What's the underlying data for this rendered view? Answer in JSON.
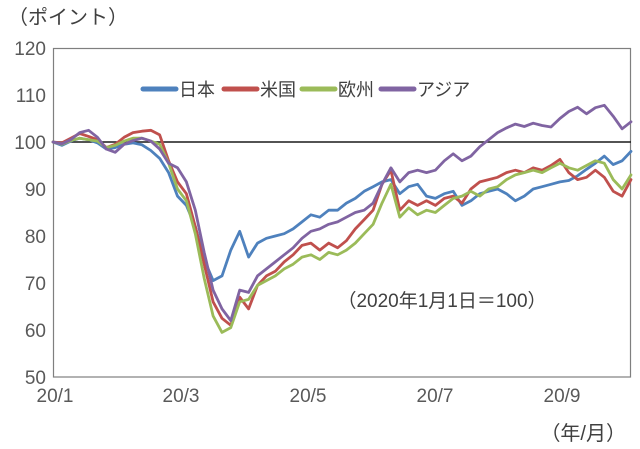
{
  "chart_data": {
    "type": "line",
    "unit_label": "（ポイント）",
    "x_axis_label": "（年/月）",
    "annotation": "（2020年1月1日＝100）",
    "ylim": [
      50,
      120
    ],
    "baseline_value": 100,
    "grid": false,
    "legend_position": "top-inside",
    "y_tick_labels": [
      "120",
      "110",
      "100",
      "90",
      "80",
      "70",
      "60",
      "50"
    ],
    "x_tick_labels": [
      "20/1",
      "20/3",
      "20/5",
      "20/7",
      "20/9"
    ],
    "series": [
      {
        "name": "日本",
        "color": "#4E81BD",
        "values": [
          100,
          99.3,
          100.2,
          100.8,
          100.5,
          99.8,
          98.5,
          98.8,
          99.5,
          99.8,
          99.4,
          98.2,
          96.5,
          93.5,
          88.5,
          86.5,
          82,
          75,
          70.5,
          71.5,
          77,
          81,
          75.5,
          78.5,
          79.5,
          80,
          80.5,
          81.5,
          83,
          84.5,
          84,
          85.5,
          85.5,
          87,
          88,
          89.5,
          90.5,
          91.5,
          92,
          89,
          90.5,
          91,
          88.5,
          88,
          89,
          89.5,
          86.5,
          87.5,
          89,
          89.5,
          90,
          89,
          87.5,
          88.5,
          90,
          90.5,
          91,
          91.5,
          91.8,
          92.8,
          94.2,
          95.5,
          97,
          95.2,
          96,
          98
        ]
      },
      {
        "name": "米国",
        "color": "#C0504D",
        "values": [
          100,
          99.8,
          100.8,
          101.8,
          101.2,
          100.5,
          98.8,
          99.5,
          101,
          102,
          102.3,
          102.5,
          101.5,
          96,
          91.5,
          89,
          82,
          74,
          66,
          62.5,
          61,
          67,
          64.5,
          69.5,
          71.5,
          72.5,
          74.5,
          76,
          78,
          78.5,
          77,
          78.5,
          77.5,
          79,
          81.5,
          83.5,
          85.5,
          91,
          94,
          85.5,
          87.5,
          86.5,
          87.5,
          86.5,
          88,
          88.5,
          87,
          90,
          91.5,
          92,
          92.5,
          93.5,
          94,
          93.5,
          94.5,
          94,
          95,
          96.3,
          93.5,
          92,
          92.5,
          94,
          92.5,
          89.5,
          88.5,
          92
        ]
      },
      {
        "name": "欧州",
        "color": "#9BBB59",
        "values": [
          100,
          99.5,
          100.3,
          100.8,
          100.5,
          100.2,
          98.8,
          99.3,
          100.2,
          100.8,
          100.8,
          100.2,
          99.5,
          95.5,
          90,
          87.5,
          80.5,
          71,
          63,
          59.5,
          60.5,
          66,
          66.5,
          69.5,
          70.5,
          71.5,
          73,
          74,
          75.5,
          76,
          75,
          76.5,
          76,
          77,
          78.5,
          80.5,
          82.5,
          87,
          91,
          84,
          86,
          84.5,
          85.5,
          85,
          86.5,
          88,
          88.5,
          89.5,
          88.5,
          90,
          90.5,
          92,
          93,
          93.5,
          94,
          93.5,
          94.5,
          95.5,
          94.5,
          94,
          95,
          96,
          95.5,
          92,
          90,
          93
        ]
      },
      {
        "name": "アジア",
        "color": "#8064A2",
        "values": [
          100,
          99.6,
          100.5,
          102,
          102.5,
          101,
          98.5,
          97.8,
          99.5,
          100.3,
          100.8,
          100.2,
          98.5,
          95.5,
          94.5,
          91.5,
          85.5,
          76.5,
          68.5,
          64.5,
          62,
          68.5,
          68,
          71.5,
          73,
          74.5,
          76,
          77.5,
          79.5,
          81,
          81.5,
          82.5,
          83,
          84,
          85,
          85.5,
          87,
          91,
          94.5,
          91.5,
          93.5,
          94,
          93.5,
          94,
          96,
          97.5,
          96,
          97,
          99,
          100.5,
          102,
          103,
          103.8,
          103.3,
          104,
          103.5,
          103.2,
          105,
          106.5,
          107.4,
          106,
          107.3,
          107.8,
          105.5,
          102.8,
          104.3
        ]
      }
    ]
  }
}
